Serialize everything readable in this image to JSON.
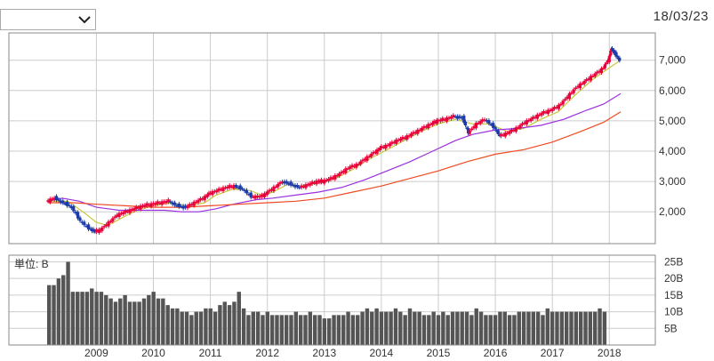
{
  "period_select": {
    "value": ""
  },
  "as_of_date": "18/03/23",
  "chart_data": {
    "type": "candlestick",
    "price_axis": {
      "ticks": [
        2000,
        3000,
        4000,
        5000,
        6000,
        7000
      ],
      "tick_labels": [
        "2,000",
        "3,000",
        "4,000",
        "5,000",
        "6,000",
        "7,000"
      ],
      "ylim": [
        950,
        7900
      ]
    },
    "volume_axis": {
      "unit_label": "単位: B",
      "ticks": [
        5,
        10,
        15,
        20,
        25
      ],
      "tick_labels": [
        "5B",
        "10B",
        "15B",
        "20B",
        "25B"
      ],
      "ylim": [
        0,
        27
      ]
    },
    "x_axis": {
      "years": [
        "2009",
        "2010",
        "2011",
        "2012",
        "2013",
        "2014",
        "2015",
        "2016",
        "2017",
        "2018"
      ],
      "start": 2008.12,
      "end": 2018.23
    },
    "grid": true,
    "colors": {
      "up": "#e8003a",
      "down": "#1b3aa8",
      "ma_short": "#c8c83a",
      "ma_mid": "#9b30e0",
      "ma_long": "#f04a20",
      "volume": "#555555"
    },
    "series": [
      {
        "kind": "close",
        "points": [
          [
            2008.15,
            2350
          ],
          [
            2008.3,
            2450
          ],
          [
            2008.45,
            2300
          ],
          [
            2008.6,
            2150
          ],
          [
            2008.75,
            1700
          ],
          [
            2008.9,
            1450
          ],
          [
            2009.0,
            1350
          ],
          [
            2009.1,
            1400
          ],
          [
            2009.25,
            1650
          ],
          [
            2009.4,
            1900
          ],
          [
            2009.55,
            2000
          ],
          [
            2009.7,
            2100
          ],
          [
            2009.85,
            2200
          ],
          [
            2010.0,
            2250
          ],
          [
            2010.15,
            2300
          ],
          [
            2010.3,
            2350
          ],
          [
            2010.45,
            2200
          ],
          [
            2010.6,
            2150
          ],
          [
            2010.75,
            2300
          ],
          [
            2010.9,
            2450
          ],
          [
            2011.0,
            2600
          ],
          [
            2011.15,
            2700
          ],
          [
            2011.3,
            2800
          ],
          [
            2011.45,
            2850
          ],
          [
            2011.6,
            2750
          ],
          [
            2011.75,
            2500
          ],
          [
            2011.9,
            2500
          ],
          [
            2012.0,
            2600
          ],
          [
            2012.15,
            2800
          ],
          [
            2012.3,
            3000
          ],
          [
            2012.45,
            2900
          ],
          [
            2012.6,
            2800
          ],
          [
            2012.75,
            2900
          ],
          [
            2012.9,
            3000
          ],
          [
            2013.0,
            3000
          ],
          [
            2013.15,
            3100
          ],
          [
            2013.3,
            3250
          ],
          [
            2013.45,
            3450
          ],
          [
            2013.6,
            3550
          ],
          [
            2013.75,
            3750
          ],
          [
            2013.9,
            3950
          ],
          [
            2014.0,
            4100
          ],
          [
            2014.15,
            4200
          ],
          [
            2014.3,
            4350
          ],
          [
            2014.45,
            4450
          ],
          [
            2014.6,
            4600
          ],
          [
            2014.75,
            4750
          ],
          [
            2014.9,
            4900
          ],
          [
            2015.0,
            5000
          ],
          [
            2015.15,
            5050
          ],
          [
            2015.3,
            5150
          ],
          [
            2015.45,
            5100
          ],
          [
            2015.55,
            4600
          ],
          [
            2015.7,
            4900
          ],
          [
            2015.85,
            5050
          ],
          [
            2016.0,
            4800
          ],
          [
            2016.1,
            4500
          ],
          [
            2016.25,
            4600
          ],
          [
            2016.4,
            4750
          ],
          [
            2016.55,
            4950
          ],
          [
            2016.7,
            5100
          ],
          [
            2016.85,
            5250
          ],
          [
            2017.0,
            5350
          ],
          [
            2017.15,
            5500
          ],
          [
            2017.3,
            5800
          ],
          [
            2017.45,
            6100
          ],
          [
            2017.6,
            6300
          ],
          [
            2017.75,
            6500
          ],
          [
            2017.9,
            6700
          ],
          [
            2018.0,
            7000
          ],
          [
            2018.05,
            7400
          ],
          [
            2018.12,
            7200
          ],
          [
            2018.2,
            7000
          ]
        ]
      },
      {
        "kind": "ma_short",
        "points": [
          [
            2008.15,
            2350
          ],
          [
            2008.5,
            2350
          ],
          [
            2008.8,
            1950
          ],
          [
            2009.0,
            1650
          ],
          [
            2009.2,
            1550
          ],
          [
            2009.4,
            1750
          ],
          [
            2009.6,
            1950
          ],
          [
            2009.8,
            2100
          ],
          [
            2010.0,
            2200
          ],
          [
            2010.3,
            2300
          ],
          [
            2010.6,
            2200
          ],
          [
            2010.9,
            2300
          ],
          [
            2011.1,
            2550
          ],
          [
            2011.4,
            2750
          ],
          [
            2011.7,
            2700
          ],
          [
            2011.9,
            2550
          ],
          [
            2012.1,
            2650
          ],
          [
            2012.35,
            2900
          ],
          [
            2012.6,
            2850
          ],
          [
            2012.9,
            2950
          ],
          [
            2013.2,
            3100
          ],
          [
            2013.5,
            3400
          ],
          [
            2013.8,
            3750
          ],
          [
            2014.1,
            4050
          ],
          [
            2014.4,
            4350
          ],
          [
            2014.7,
            4650
          ],
          [
            2015.0,
            4900
          ],
          [
            2015.3,
            5050
          ],
          [
            2015.6,
            4900
          ],
          [
            2015.9,
            4900
          ],
          [
            2016.2,
            4650
          ],
          [
            2016.5,
            4750
          ],
          [
            2016.8,
            5050
          ],
          [
            2017.1,
            5300
          ],
          [
            2017.4,
            5850
          ],
          [
            2017.7,
            6350
          ],
          [
            2018.0,
            6750
          ],
          [
            2018.2,
            7000
          ]
        ]
      },
      {
        "kind": "ma_mid",
        "points": [
          [
            2008.15,
            2350
          ],
          [
            2008.4,
            2450
          ],
          [
            2008.7,
            2350
          ],
          [
            2009.0,
            2150
          ],
          [
            2009.4,
            2050
          ],
          [
            2009.8,
            2050
          ],
          [
            2010.2,
            2050
          ],
          [
            2010.5,
            2000
          ],
          [
            2010.8,
            2000
          ],
          [
            2011.1,
            2100
          ],
          [
            2011.4,
            2250
          ],
          [
            2011.8,
            2400
          ],
          [
            2012.1,
            2450
          ],
          [
            2012.5,
            2550
          ],
          [
            2012.9,
            2650
          ],
          [
            2013.3,
            2800
          ],
          [
            2013.7,
            3050
          ],
          [
            2014.1,
            3350
          ],
          [
            2014.5,
            3650
          ],
          [
            2014.9,
            4000
          ],
          [
            2015.3,
            4350
          ],
          [
            2015.6,
            4550
          ],
          [
            2016.0,
            4700
          ],
          [
            2016.4,
            4750
          ],
          [
            2016.8,
            4850
          ],
          [
            2017.2,
            5050
          ],
          [
            2017.6,
            5350
          ],
          [
            2017.9,
            5550
          ],
          [
            2018.2,
            5900
          ]
        ]
      },
      {
        "kind": "ma_long",
        "points": [
          [
            2008.15,
            2300
          ],
          [
            2008.6,
            2300
          ],
          [
            2009.0,
            2250
          ],
          [
            2009.5,
            2200
          ],
          [
            2010.0,
            2150
          ],
          [
            2010.5,
            2150
          ],
          [
            2011.0,
            2200
          ],
          [
            2011.5,
            2250
          ],
          [
            2012.0,
            2300
          ],
          [
            2012.5,
            2350
          ],
          [
            2013.0,
            2450
          ],
          [
            2013.5,
            2650
          ],
          [
            2014.0,
            2850
          ],
          [
            2014.5,
            3100
          ],
          [
            2015.0,
            3350
          ],
          [
            2015.5,
            3650
          ],
          [
            2016.0,
            3900
          ],
          [
            2016.5,
            4050
          ],
          [
            2017.0,
            4300
          ],
          [
            2017.5,
            4650
          ],
          [
            2017.9,
            4950
          ],
          [
            2018.2,
            5300
          ]
        ]
      }
    ],
    "volume": {
      "x_start": 2008.17,
      "x_step": 0.0833,
      "values": [
        18,
        18,
        20,
        21,
        25,
        16,
        16,
        16,
        16,
        17,
        16,
        16,
        15,
        14,
        13,
        14,
        15,
        13,
        13,
        13,
        14,
        15,
        16,
        14,
        14,
        12,
        11,
        11,
        10,
        10,
        9,
        10,
        10,
        11,
        11,
        10,
        12,
        13,
        12,
        13,
        16,
        11,
        9,
        10,
        10,
        9,
        10,
        9,
        9,
        9,
        9,
        9,
        10,
        9,
        9,
        10,
        9,
        9,
        8,
        8,
        9,
        9,
        9,
        10,
        9,
        9,
        10,
        11,
        10,
        11,
        10,
        10,
        10,
        11,
        10,
        9,
        11,
        10,
        10,
        9,
        9,
        10,
        9,
        10,
        9,
        10,
        10,
        10,
        10,
        9,
        11,
        10,
        9,
        9,
        9,
        10,
        10,
        9,
        9,
        10,
        10,
        10,
        10,
        10,
        9,
        11,
        10,
        10,
        10,
        10,
        10,
        10,
        10,
        10,
        10,
        10,
        11,
        10
      ]
    }
  }
}
